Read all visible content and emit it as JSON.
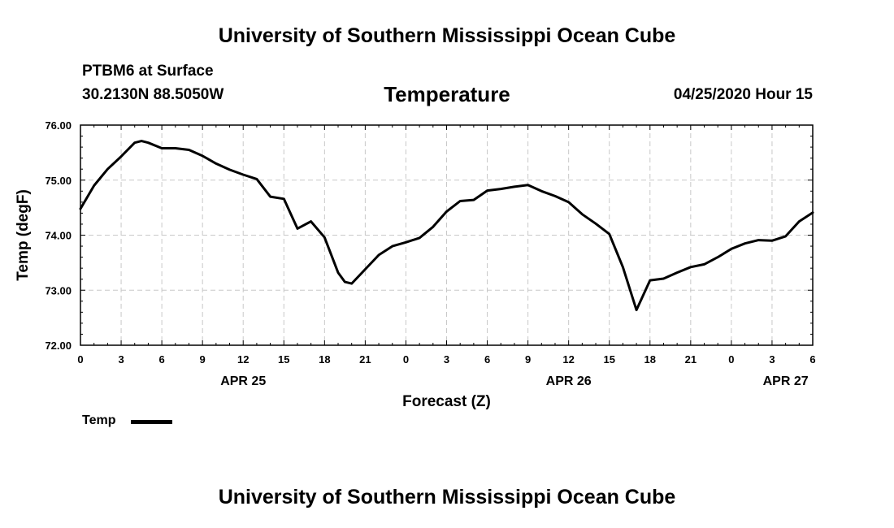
{
  "header": {
    "title": "University of Southern Mississippi Ocean Cube",
    "station": "PTBM6 at Surface",
    "coordinates": "30.2130N 88.5050W",
    "timestamp": "04/25/2020 Hour 15"
  },
  "footer": {
    "title": "University of Southern Mississippi Ocean Cube"
  },
  "legend": {
    "label": "Temp"
  },
  "chart_data": {
    "type": "line",
    "title": "Temperature",
    "xlabel": "Forecast (Z)",
    "ylabel": "Temp (degF)",
    "xlim": [
      0,
      54
    ],
    "ylim": [
      72.0,
      76.0
    ],
    "x_tick_values": [
      0,
      3,
      6,
      9,
      12,
      15,
      18,
      21,
      24,
      27,
      30,
      33,
      36,
      39,
      42,
      45,
      48,
      51,
      54
    ],
    "x_tick_labels": [
      "0",
      "3",
      "6",
      "9",
      "12",
      "15",
      "18",
      "21",
      "0",
      "3",
      "6",
      "9",
      "12",
      "15",
      "18",
      "21",
      "0",
      "3",
      "6"
    ],
    "y_tick_values": [
      72,
      73,
      74,
      75,
      76
    ],
    "y_tick_labels": [
      "72.00",
      "73.00",
      "74.00",
      "75.00",
      "76.00"
    ],
    "date_labels": [
      {
        "x": 12,
        "label": "APR 25"
      },
      {
        "x": 36,
        "label": "APR 26"
      },
      {
        "x": 52,
        "label": "APR 27"
      }
    ],
    "grid": true,
    "series": [
      {
        "name": "Temp",
        "color": "#000000",
        "x": [
          0,
          1,
          2,
          3,
          4,
          4.5,
          5,
          6,
          7,
          8,
          9,
          10,
          11,
          12,
          13,
          14,
          15,
          16,
          17,
          18,
          19,
          19.5,
          20,
          21,
          22,
          23,
          24,
          25,
          26,
          27,
          28,
          29,
          30,
          31,
          32,
          33,
          34,
          35,
          36,
          37,
          38,
          39,
          40,
          41,
          42,
          43,
          44,
          45,
          46,
          47,
          48,
          49,
          50,
          51,
          52,
          53,
          54
        ],
        "values": [
          74.48,
          74.9,
          75.2,
          75.43,
          75.68,
          75.71,
          75.68,
          75.58,
          75.58,
          75.55,
          75.44,
          75.3,
          75.19,
          75.1,
          75.02,
          74.7,
          74.66,
          74.12,
          74.25,
          73.96,
          73.32,
          73.15,
          73.12,
          73.38,
          73.64,
          73.8,
          73.87,
          73.95,
          74.15,
          74.43,
          74.62,
          74.64,
          74.81,
          74.84,
          74.88,
          74.91,
          74.8,
          74.71,
          74.6,
          74.38,
          74.21,
          74.02,
          73.42,
          72.64,
          73.18,
          73.21,
          73.32,
          73.42,
          73.47,
          73.6,
          73.75,
          73.85,
          73.91,
          73.9,
          73.98,
          74.25,
          74.41
        ]
      }
    ]
  }
}
